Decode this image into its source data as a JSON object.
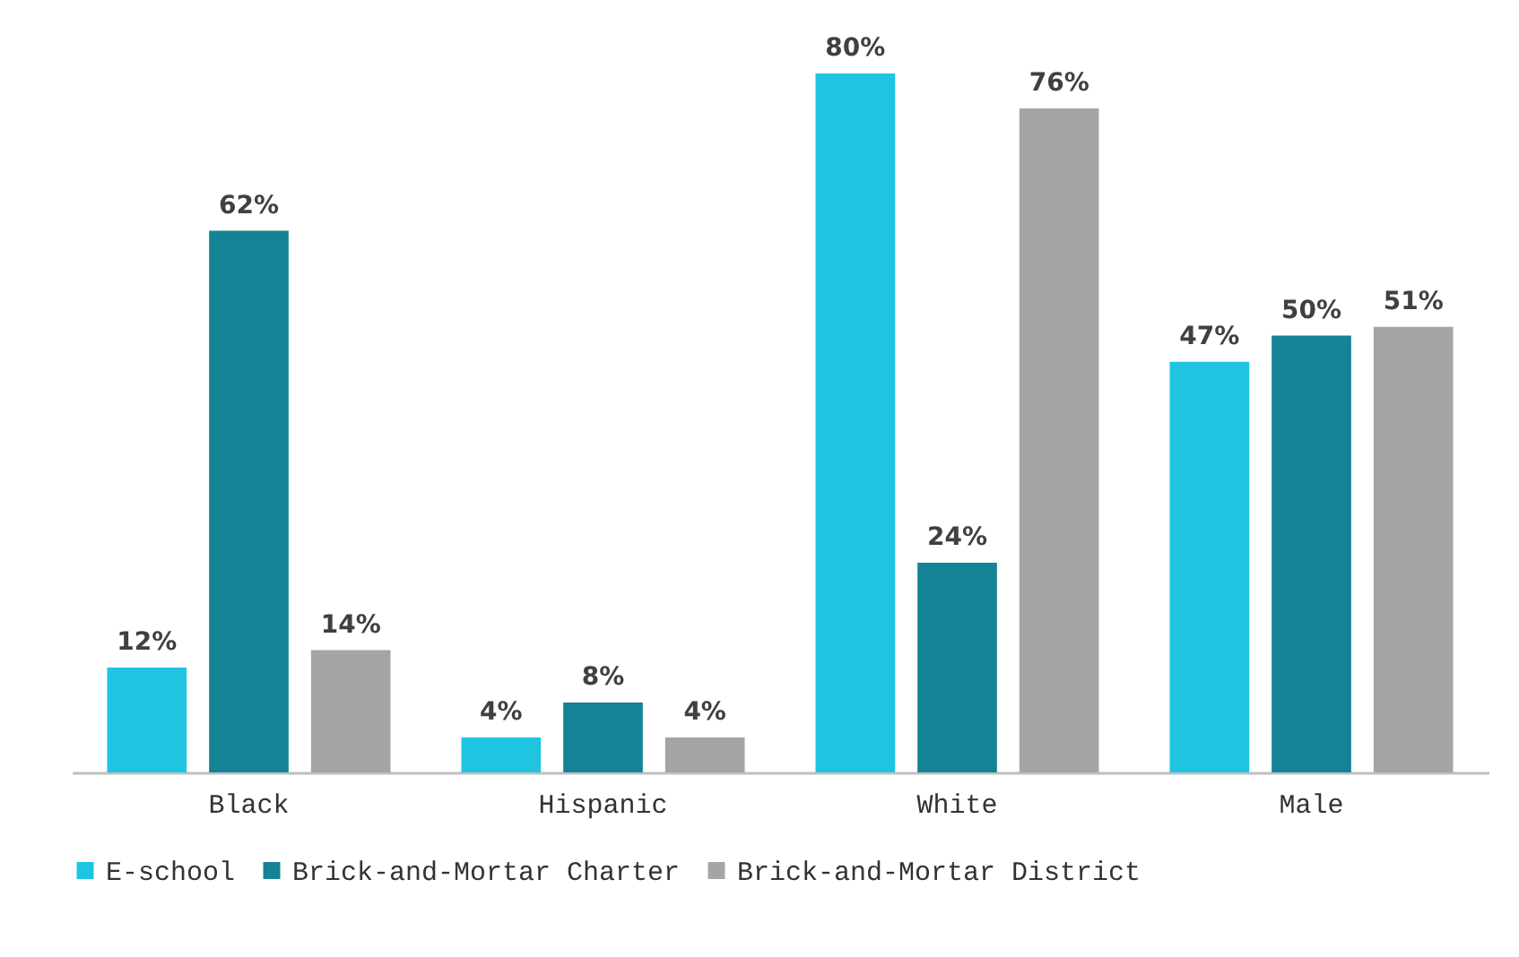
{
  "chart_data": {
    "type": "bar",
    "categories": [
      "Black",
      "Hispanic",
      "White",
      "Male"
    ],
    "series": [
      {
        "name": "E-school",
        "color": "#1fc4e0",
        "values": [
          12,
          4,
          80,
          47
        ],
        "value_labels": [
          "12%",
          "4%",
          "80%",
          "47%"
        ]
      },
      {
        "name": "Brick-and-Mortar Charter",
        "color": "#148395",
        "values": [
          62,
          8,
          24,
          50
        ],
        "value_labels": [
          "62%",
          "8%",
          "24%",
          "50%"
        ]
      },
      {
        "name": "Brick-and-Mortar District",
        "color": "#a5a5a5",
        "values": [
          14,
          4,
          76,
          51
        ],
        "value_labels": [
          "14%",
          "4%",
          "76%",
          "51%"
        ]
      }
    ],
    "legend": "bottom",
    "grid": false
  }
}
